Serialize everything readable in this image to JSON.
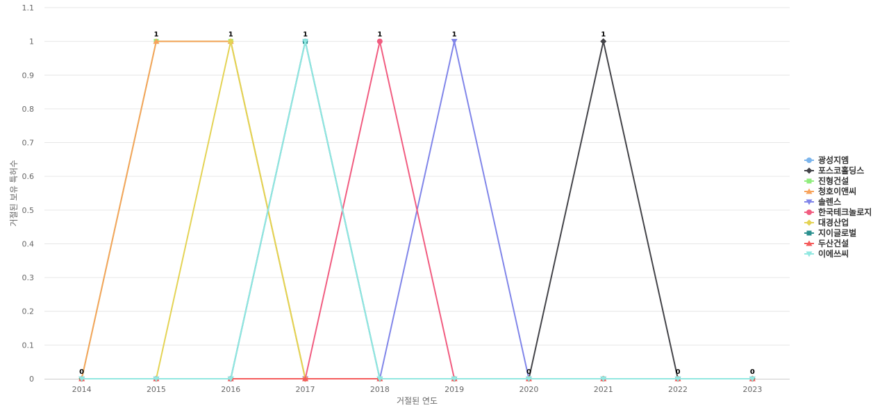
{
  "chart_data": {
    "type": "line",
    "title": "",
    "xlabel": "거절된 연도",
    "ylabel": "거절된 보유 특허수",
    "x": [
      "2014",
      "2015",
      "2016",
      "2017",
      "2018",
      "2019",
      "2020",
      "2021",
      "2022",
      "2023"
    ],
    "ylim": [
      0,
      1.1
    ],
    "yticks": [
      "0",
      "0.1",
      "0.2",
      "0.3",
      "0.4",
      "0.5",
      "0.6",
      "0.7",
      "0.8",
      "0.9",
      "1",
      "1.1"
    ],
    "grid": true,
    "legend_position": "right",
    "series": [
      {
        "name": "광성지엠",
        "color": "#7cb5ec",
        "marker": "circle",
        "values": [
          0,
          0,
          0,
          1,
          0,
          0,
          0,
          0,
          0,
          0
        ]
      },
      {
        "name": "포스코홀딩스",
        "color": "#434348",
        "marker": "diamond",
        "values": [
          0,
          0,
          0,
          0,
          0,
          0,
          0,
          1,
          0,
          0
        ]
      },
      {
        "name": "진형건설",
        "color": "#90ed7d",
        "marker": "square",
        "values": [
          0,
          1,
          1,
          0,
          0,
          0,
          0,
          0,
          0,
          0
        ]
      },
      {
        "name": "청호이앤씨",
        "color": "#f7a35c",
        "marker": "triangle",
        "values": [
          0,
          1,
          1,
          0,
          0,
          0,
          0,
          0,
          0,
          0
        ]
      },
      {
        "name": "솔렌스",
        "color": "#8085e9",
        "marker": "triangle-down",
        "values": [
          0,
          0,
          0,
          0,
          0,
          1,
          0,
          0,
          0,
          0
        ]
      },
      {
        "name": "한국테크놀로지",
        "color": "#f15c80",
        "marker": "circle",
        "values": [
          0,
          0,
          0,
          0,
          1,
          0,
          0,
          0,
          0,
          0
        ]
      },
      {
        "name": "대경산업",
        "color": "#e4d354",
        "marker": "diamond",
        "values": [
          0,
          0,
          1,
          0,
          0,
          0,
          0,
          0,
          0,
          0
        ]
      },
      {
        "name": "지이글로벌",
        "color": "#2b908f",
        "marker": "square",
        "values": [
          0,
          0,
          0,
          1,
          0,
          0,
          0,
          0,
          0,
          0
        ]
      },
      {
        "name": "두산건설",
        "color": "#f45b5b",
        "marker": "triangle",
        "values": [
          0,
          0,
          0,
          0,
          0,
          0,
          0,
          0,
          0,
          0
        ]
      },
      {
        "name": "이에쓰씨",
        "color": "#91e8e1",
        "marker": "triangle-down",
        "values": [
          0,
          0,
          0,
          1,
          0,
          0,
          0,
          0,
          0,
          0
        ]
      }
    ],
    "data_labels": [
      "0",
      "1",
      "1",
      "1",
      "1",
      "1",
      "0",
      "1",
      "0",
      "0"
    ]
  }
}
